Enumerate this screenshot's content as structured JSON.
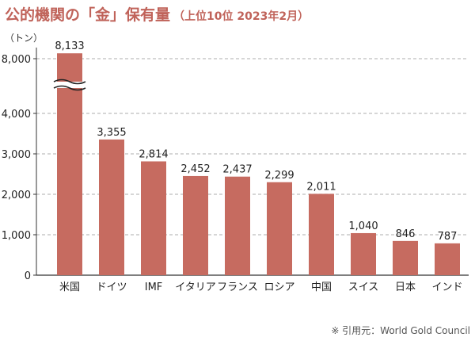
{
  "title_main": "公的機関の「金」保有量",
  "title_sub": "（上位10位 2023年2月）",
  "source": "※ 引用元：World Gold Council",
  "colors": {
    "bar": "#c66b60",
    "title": "#c0635a",
    "grid": "#bdbdbd",
    "axis": "#333333"
  },
  "chart_data": {
    "type": "bar",
    "title": "公的機関の「金」保有量（上位10位 2023年2月）",
    "unit_label": "（トン）",
    "categories": [
      "米国",
      "ドイツ",
      "IMF",
      "イタリア",
      "フランス",
      "ロシア",
      "中国",
      "スイス",
      "日本",
      "インド"
    ],
    "values": [
      8133,
      3355,
      2814,
      2452,
      2437,
      2299,
      2011,
      1040,
      846,
      787
    ],
    "value_labels": [
      "8,133",
      "3,355",
      "2,814",
      "2,452",
      "2,437",
      "2,299",
      "2,011",
      "1,040",
      "846",
      "787"
    ],
    "yticks_lower": [
      0,
      1000,
      2000,
      3000,
      4000
    ],
    "ytick_labels_lower": [
      "0",
      "1,000",
      "2,000",
      "3,000",
      "4,000"
    ],
    "ytick_upper": 8000,
    "ytick_label_upper": "8,000",
    "ylim": [
      0,
      8000
    ],
    "axis_break": true,
    "grid": "dashed-horizontal",
    "legend": "none"
  }
}
